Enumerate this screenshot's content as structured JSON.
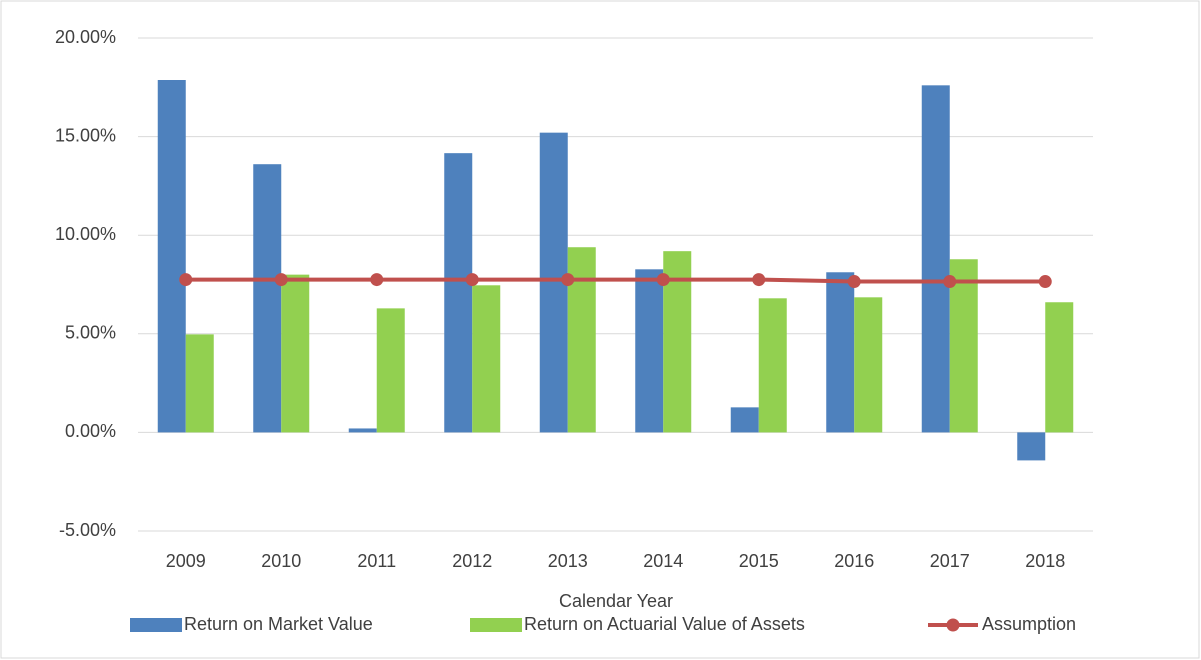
{
  "chart_data": {
    "type": "bar",
    "x_label": "Calendar Year",
    "categories": [
      "2009",
      "2010",
      "2011",
      "2012",
      "2013",
      "2014",
      "2015",
      "2016",
      "2017",
      "2018"
    ],
    "series": [
      {
        "name": "Return on Market Value",
        "color": "#4e81bd",
        "values": [
          17.87,
          13.6,
          0.2,
          14.16,
          15.2,
          8.27,
          1.27,
          8.12,
          17.6,
          -1.42
        ]
      },
      {
        "name": "Return on Actuarial Value of Assets",
        "color": "#92d050",
        "values": [
          4.97,
          8.0,
          6.29,
          7.46,
          9.39,
          9.19,
          6.8,
          6.85,
          8.78,
          6.6
        ]
      },
      {
        "name": "Assumption",
        "type": "line",
        "color": "#c0504d",
        "values": [
          7.75,
          7.75,
          7.75,
          7.75,
          7.75,
          7.75,
          7.75,
          7.65,
          7.65,
          7.65
        ]
      }
    ],
    "ylim": [
      -5,
      20
    ],
    "yticks": [
      {
        "value": -5,
        "label": "-5.00%"
      },
      {
        "value": 0,
        "label": "0.00%"
      },
      {
        "value": 5,
        "label": "5.00%"
      },
      {
        "value": 10,
        "label": "10.00%"
      },
      {
        "value": 15,
        "label": "15.00%"
      },
      {
        "value": 20,
        "label": "20.00%"
      }
    ],
    "grid": true,
    "legend": "bottom"
  }
}
